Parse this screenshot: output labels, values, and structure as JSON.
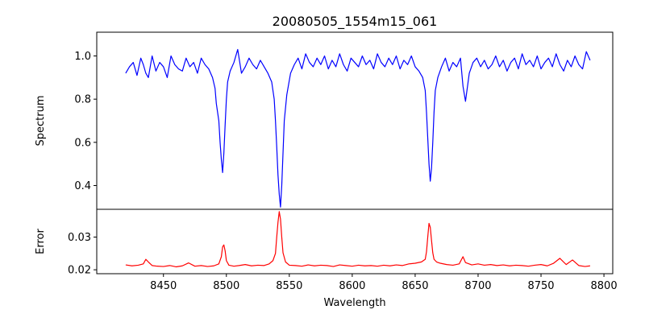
{
  "chart_data": [
    {
      "type": "line",
      "panel": "top",
      "title": "20080505_1554m15_061",
      "xlabel": "",
      "ylabel": "Spectrum",
      "xlim": [
        8397,
        8807
      ],
      "ylim": [
        0.29,
        1.11
      ],
      "xticks": [
        8450,
        8500,
        8550,
        8600,
        8650,
        8700,
        8750,
        8800
      ],
      "yticks": [
        0.4,
        0.6,
        0.8,
        1.0
      ],
      "ytick_labels": [
        "0.4",
        "0.6",
        "0.8",
        "1.0"
      ],
      "grid": false,
      "series": [
        {
          "color": "#0000ff",
          "x": [
            8420,
            8423,
            8426,
            8429,
            8432,
            8434,
            8436,
            8438,
            8441,
            8444,
            8447,
            8450,
            8453,
            8456,
            8459,
            8462,
            8465,
            8468,
            8471,
            8474,
            8477,
            8480,
            8483,
            8486,
            8489,
            8491,
            8492,
            8494,
            8495,
            8496,
            8497,
            8498,
            8499,
            8500,
            8501,
            8503,
            8506,
            8509,
            8512,
            8515,
            8518,
            8521,
            8524,
            8527,
            8530,
            8533,
            8536,
            8538,
            8539,
            8540,
            8541,
            8542,
            8543,
            8544,
            8545,
            8546,
            8548,
            8551,
            8554,
            8557,
            8560,
            8563,
            8566,
            8569,
            8572,
            8575,
            8578,
            8581,
            8584,
            8587,
            8590,
            8593,
            8596,
            8599,
            8602,
            8605,
            8608,
            8611,
            8614,
            8617,
            8620,
            8623,
            8626,
            8629,
            8632,
            8635,
            8638,
            8641,
            8644,
            8647,
            8650,
            8653,
            8656,
            8658,
            8659,
            8660,
            8661,
            8662,
            8663,
            8664,
            8665,
            8666,
            8668,
            8671,
            8674,
            8677,
            8680,
            8683,
            8686,
            8688,
            8690,
            8693,
            8696,
            8699,
            8702,
            8705,
            8708,
            8711,
            8714,
            8717,
            8720,
            8723,
            8726,
            8729,
            8732,
            8735,
            8738,
            8741,
            8744,
            8747,
            8750,
            8753,
            8756,
            8759,
            8762,
            8765,
            8768,
            8771,
            8774,
            8777,
            8780,
            8783,
            8786,
            8789
          ],
          "y": [
            0.92,
            0.95,
            0.97,
            0.91,
            0.99,
            0.96,
            0.92,
            0.9,
            1.0,
            0.93,
            0.97,
            0.95,
            0.9,
            1.0,
            0.96,
            0.94,
            0.93,
            0.99,
            0.95,
            0.97,
            0.92,
            0.99,
            0.96,
            0.94,
            0.9,
            0.85,
            0.78,
            0.7,
            0.6,
            0.52,
            0.46,
            0.55,
            0.68,
            0.8,
            0.88,
            0.93,
            0.97,
            1.03,
            0.92,
            0.95,
            0.99,
            0.96,
            0.94,
            0.98,
            0.95,
            0.92,
            0.88,
            0.8,
            0.7,
            0.58,
            0.45,
            0.36,
            0.3,
            0.4,
            0.55,
            0.7,
            0.82,
            0.92,
            0.96,
            0.99,
            0.94,
            1.01,
            0.97,
            0.95,
            0.99,
            0.96,
            1.0,
            0.94,
            0.98,
            0.95,
            1.01,
            0.96,
            0.93,
            0.99,
            0.97,
            0.95,
            1.0,
            0.96,
            0.98,
            0.94,
            1.01,
            0.97,
            0.95,
            0.99,
            0.96,
            1.0,
            0.94,
            0.98,
            0.96,
            1.0,
            0.95,
            0.93,
            0.9,
            0.84,
            0.74,
            0.62,
            0.5,
            0.42,
            0.48,
            0.6,
            0.74,
            0.84,
            0.9,
            0.95,
            0.99,
            0.93,
            0.97,
            0.95,
            0.99,
            0.86,
            0.79,
            0.92,
            0.97,
            0.99,
            0.95,
            0.98,
            0.94,
            0.96,
            1.0,
            0.95,
            0.98,
            0.93,
            0.97,
            0.99,
            0.94,
            1.01,
            0.96,
            0.98,
            0.95,
            1.0,
            0.94,
            0.97,
            0.99,
            0.95,
            1.01,
            0.96,
            0.93,
            0.98,
            0.95,
            1.0,
            0.96,
            0.94,
            1.02,
            0.98
          ]
        }
      ]
    },
    {
      "type": "line",
      "panel": "bottom",
      "xlabel": "Wavelength",
      "ylabel": "Error",
      "xlim": [
        8397,
        8807
      ],
      "ylim": [
        0.0188,
        0.0385
      ],
      "xticks": [
        8450,
        8500,
        8550,
        8600,
        8650,
        8700,
        8750,
        8800
      ],
      "xtick_labels": [
        "8450",
        "8500",
        "8550",
        "8600",
        "8650",
        "8700",
        "8750",
        "8800"
      ],
      "yticks": [
        0.02,
        0.03
      ],
      "ytick_labels": [
        "0.02",
        "0.03"
      ],
      "grid": false,
      "series": [
        {
          "color": "#ff0000",
          "x": [
            8420,
            8425,
            8430,
            8434,
            8436,
            8438,
            8441,
            8445,
            8450,
            8455,
            8460,
            8465,
            8470,
            8475,
            8480,
            8485,
            8490,
            8494,
            8496,
            8497,
            8498,
            8499,
            8500,
            8502,
            8506,
            8510,
            8515,
            8520,
            8525,
            8530,
            8534,
            8537,
            8539,
            8540,
            8541,
            8542,
            8543,
            8544,
            8545,
            8547,
            8550,
            8555,
            8560,
            8565,
            8570,
            8575,
            8580,
            8585,
            8590,
            8595,
            8600,
            8605,
            8610,
            8615,
            8620,
            8625,
            8630,
            8635,
            8640,
            8645,
            8650,
            8655,
            8658,
            8659,
            8660,
            8661,
            8662,
            8663,
            8664,
            8665,
            8667,
            8670,
            8675,
            8680,
            8685,
            8688,
            8690,
            8695,
            8700,
            8705,
            8710,
            8715,
            8720,
            8725,
            8730,
            8735,
            8740,
            8745,
            8750,
            8755,
            8760,
            8765,
            8770,
            8775,
            8780,
            8785,
            8789
          ],
          "y": [
            0.0215,
            0.0212,
            0.0214,
            0.0218,
            0.0232,
            0.0224,
            0.0213,
            0.0211,
            0.021,
            0.0213,
            0.0209,
            0.0212,
            0.0221,
            0.0211,
            0.0213,
            0.021,
            0.0212,
            0.0218,
            0.024,
            0.027,
            0.0276,
            0.0258,
            0.0228,
            0.0214,
            0.0211,
            0.0213,
            0.0216,
            0.0212,
            0.0214,
            0.0213,
            0.0218,
            0.0228,
            0.025,
            0.03,
            0.0345,
            0.0378,
            0.0355,
            0.03,
            0.0252,
            0.0224,
            0.0214,
            0.0213,
            0.0211,
            0.0215,
            0.0212,
            0.0214,
            0.0213,
            0.021,
            0.0215,
            0.0213,
            0.0211,
            0.0214,
            0.0212,
            0.0213,
            0.0211,
            0.0214,
            0.0212,
            0.0215,
            0.0213,
            0.0218,
            0.022,
            0.0224,
            0.0232,
            0.0255,
            0.03,
            0.0342,
            0.033,
            0.029,
            0.0252,
            0.0232,
            0.0224,
            0.022,
            0.0216,
            0.0214,
            0.0218,
            0.024,
            0.0222,
            0.0215,
            0.0218,
            0.0214,
            0.0216,
            0.0213,
            0.0215,
            0.0212,
            0.0214,
            0.0213,
            0.0211,
            0.0214,
            0.0216,
            0.0212,
            0.022,
            0.0235,
            0.0216,
            0.023,
            0.0213,
            0.021,
            0.0212
          ]
        }
      ]
    }
  ]
}
